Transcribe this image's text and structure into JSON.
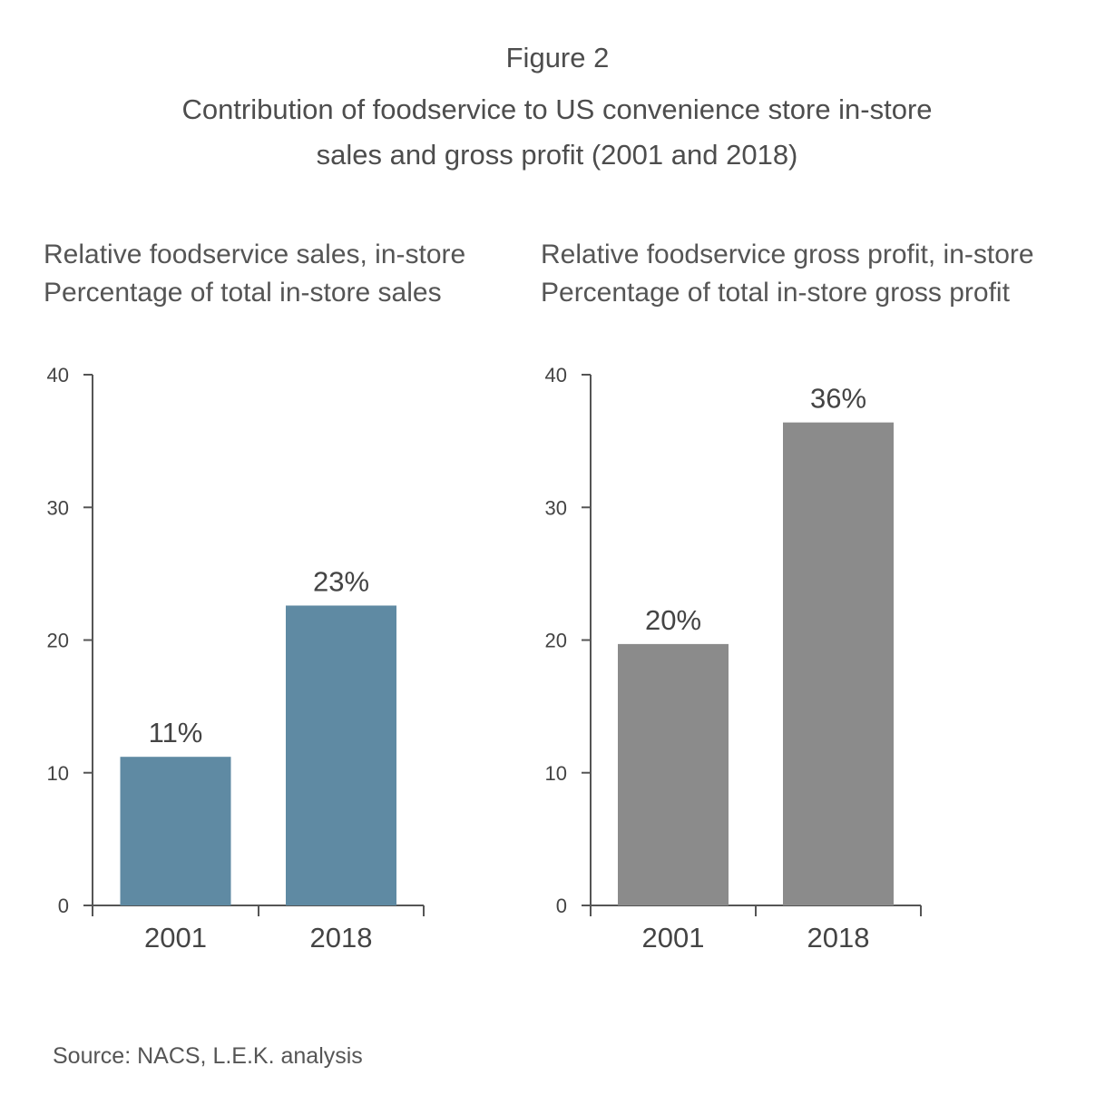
{
  "figure": {
    "label": "Figure 2",
    "title_line1": "Contribution of foodservice to US convenience store in-store",
    "title_line2": "sales and gross profit (2001 and 2018)",
    "source": "Source: NACS, L.E.K. analysis"
  },
  "colors": {
    "left_bars": "#5f8aa3",
    "right_bars": "#8b8b8b",
    "axis": "#555555"
  },
  "chart_data": [
    {
      "type": "bar",
      "title": "Relative foodservice sales, in-store",
      "subtitle": "Percentage of total in-store sales",
      "categories": [
        "2001",
        "2018"
      ],
      "values": [
        11.2,
        22.6
      ],
      "data_labels": [
        "11%",
        "23%"
      ],
      "yticks": [
        "0",
        "10",
        "20",
        "30",
        "40"
      ],
      "ylim": [
        0,
        40
      ],
      "grid": false
    },
    {
      "type": "bar",
      "title": "Relative foodservice gross profit, in-store",
      "subtitle": "Percentage of total in-store gross profit",
      "categories": [
        "2001",
        "2018"
      ],
      "values": [
        19.7,
        36.4
      ],
      "data_labels": [
        "20%",
        "36%"
      ],
      "yticks": [
        "0",
        "10",
        "20",
        "30",
        "40"
      ],
      "ylim": [
        0,
        40
      ],
      "grid": false
    }
  ]
}
